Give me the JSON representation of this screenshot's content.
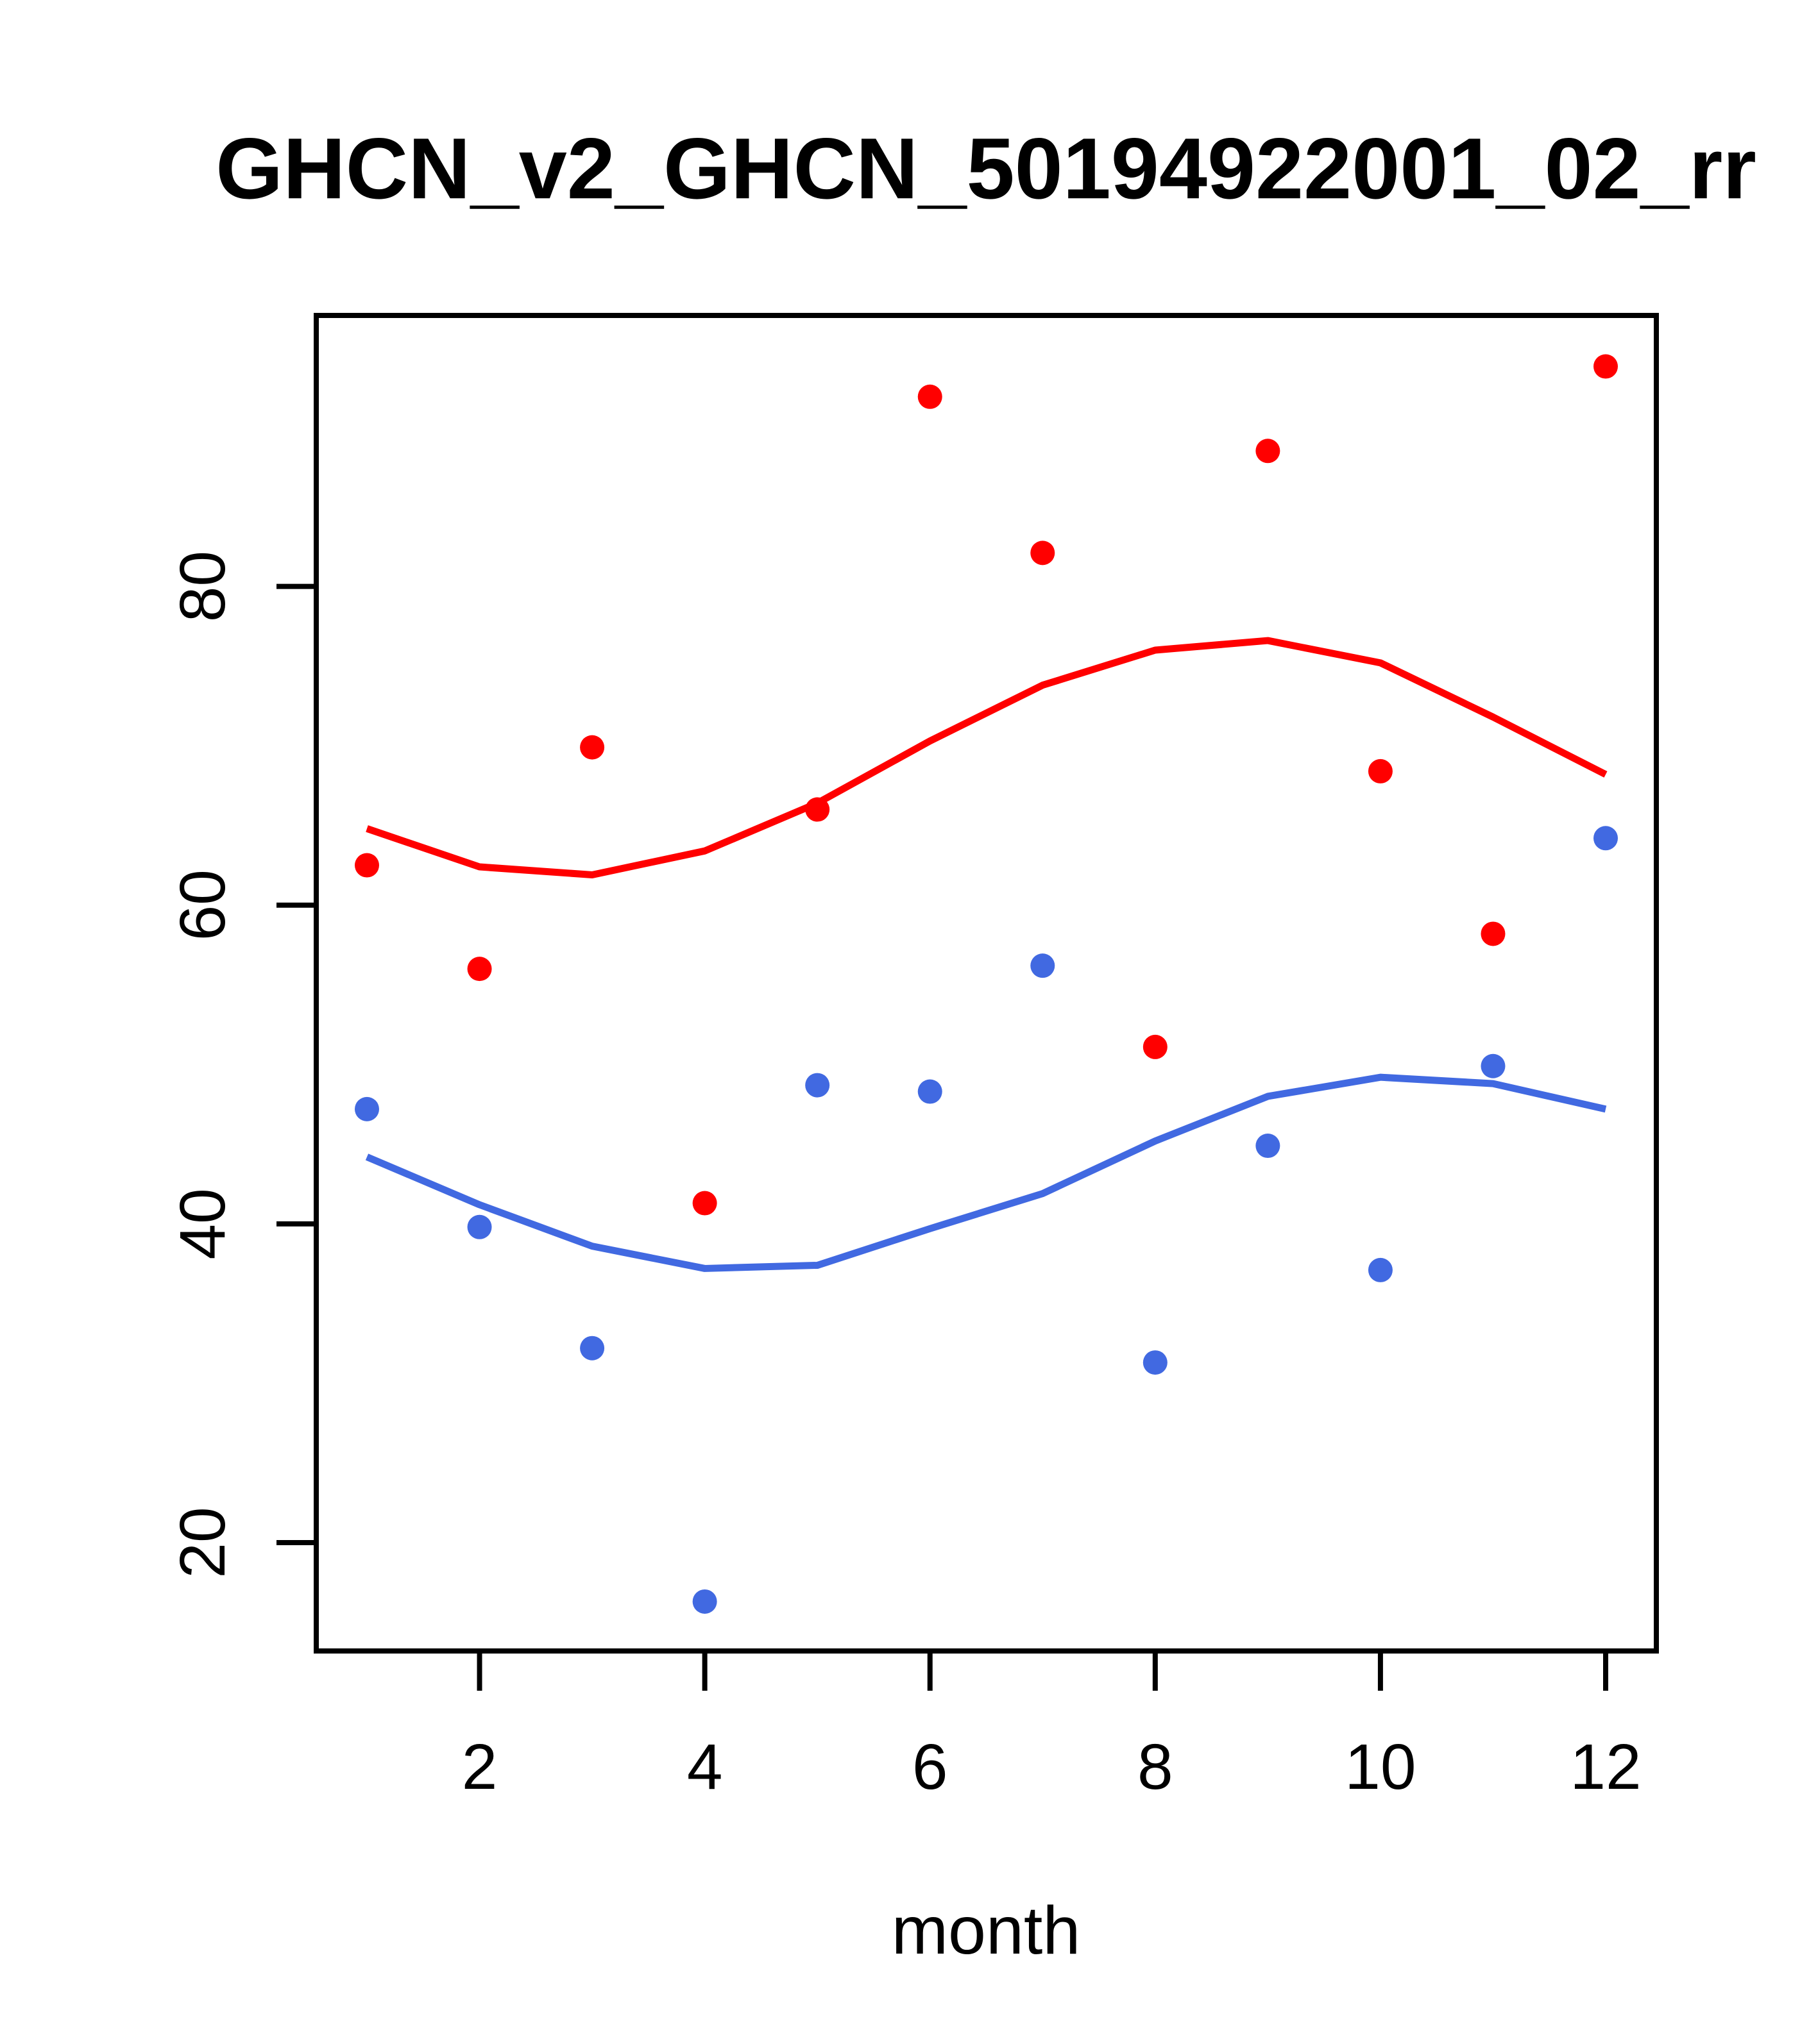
{
  "page": {
    "background": "#FFFFFF"
  },
  "chart_data": {
    "type": "scatter",
    "title": "GHCN_v2_GHCN_50194922001_02_rr",
    "xlabel": "month",
    "ylabel": "",
    "x_ticks": [
      2,
      4,
      6,
      8,
      10,
      12
    ],
    "y_ticks": [
      20,
      40,
      60,
      80
    ],
    "xlim": [
      0.55,
      12.45
    ],
    "ylim": [
      13.2,
      97.0
    ],
    "grid": false,
    "legend": "none",
    "frame": "box",
    "axis_color": "#000000",
    "categories_note": "x values are months 1-12",
    "series": [
      {
        "name": "red-points",
        "kind": "scatter",
        "color": "#FF0000",
        "marker": "circle",
        "x": [
          1,
          2,
          3,
          4,
          5,
          6,
          7,
          8,
          9,
          10,
          11,
          12
        ],
        "y": [
          62.5,
          56.0,
          69.9,
          41.3,
          66.0,
          91.9,
          82.1,
          51.1,
          88.5,
          68.4,
          58.2,
          93.8
        ]
      },
      {
        "name": "blue-points",
        "kind": "scatter",
        "color": "#4169E1",
        "marker": "circle",
        "x": [
          1,
          2,
          3,
          4,
          5,
          6,
          7,
          8,
          9,
          10,
          11,
          12
        ],
        "y": [
          47.2,
          39.8,
          32.2,
          16.3,
          48.7,
          48.3,
          56.2,
          31.3,
          44.9,
          37.1,
          49.9,
          64.2
        ]
      },
      {
        "name": "red-smooth-line",
        "kind": "line",
        "color": "#FF0000",
        "x": [
          1,
          2,
          3,
          4,
          5,
          6,
          7,
          8,
          9,
          10,
          11,
          12
        ],
        "y": [
          64.8,
          62.4,
          61.9,
          63.4,
          66.4,
          70.3,
          73.8,
          76.0,
          76.6,
          75.2,
          71.8,
          68.2
        ]
      },
      {
        "name": "blue-smooth-line",
        "kind": "line",
        "color": "#4169E1",
        "x": [
          1,
          2,
          3,
          4,
          5,
          6,
          7,
          8,
          9,
          10,
          11,
          12
        ],
        "y": [
          44.2,
          41.2,
          38.6,
          37.2,
          37.4,
          39.7,
          41.9,
          45.2,
          48.0,
          49.2,
          48.8,
          47.2
        ]
      }
    ]
  }
}
